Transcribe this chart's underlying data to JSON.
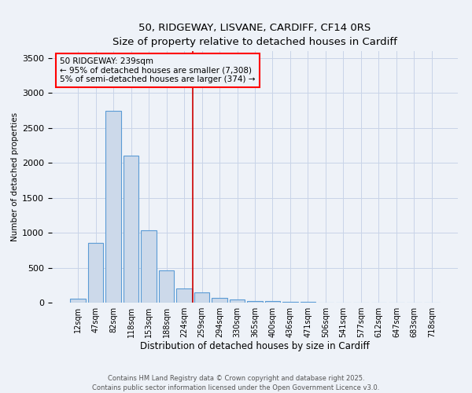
{
  "title1": "50, RIDGEWAY, LISVANE, CARDIFF, CF14 0RS",
  "title2": "Size of property relative to detached houses in Cardiff",
  "xlabel": "Distribution of detached houses by size in Cardiff",
  "ylabel": "Number of detached properties",
  "bar_labels": [
    "12sqm",
    "47sqm",
    "82sqm",
    "118sqm",
    "153sqm",
    "188sqm",
    "224sqm",
    "259sqm",
    "294sqm",
    "330sqm",
    "365sqm",
    "400sqm",
    "436sqm",
    "471sqm",
    "506sqm",
    "541sqm",
    "577sqm",
    "612sqm",
    "647sqm",
    "683sqm",
    "718sqm"
  ],
  "bar_values": [
    55,
    850,
    2750,
    2100,
    1030,
    460,
    200,
    150,
    65,
    45,
    25,
    18,
    10,
    8,
    5,
    3,
    2,
    2,
    1,
    1,
    1
  ],
  "bar_color": "#ccd9ea",
  "bar_edge_color": "#5b9bd5",
  "grid_color": "#c8d4e8",
  "vline_x": 6.5,
  "vline_color": "#cc0000",
  "annotation_text_line1": "50 RIDGEWAY: 239sqm",
  "annotation_text_line2": "← 95% of detached houses are smaller (7,308)",
  "annotation_text_line3": "5% of semi-detached houses are larger (374) →",
  "footnote1": "Contains HM Land Registry data © Crown copyright and database right 2025.",
  "footnote2": "Contains public sector information licensed under the Open Government Licence v3.0.",
  "ylim": [
    0,
    3600
  ],
  "yticks": [
    0,
    500,
    1000,
    1500,
    2000,
    2500,
    3000,
    3500
  ],
  "background_color": "#eef2f8",
  "title_fontsize": 10,
  "subtitle_fontsize": 9
}
